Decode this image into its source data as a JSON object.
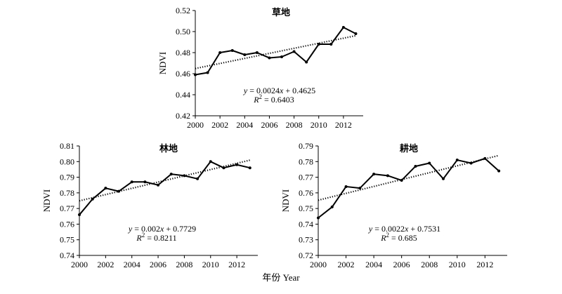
{
  "chart_data": [
    {
      "type": "line",
      "title": "草地",
      "ylabel": "NDVI",
      "x": [
        2000,
        2001,
        2002,
        2003,
        2004,
        2005,
        2006,
        2007,
        2008,
        2009,
        2010,
        2011,
        2012,
        2013
      ],
      "series": [
        {
          "values": [
            0.459,
            0.461,
            0.48,
            0.482,
            0.478,
            0.48,
            0.475,
            0.476,
            0.481,
            0.471,
            0.488,
            0.488,
            0.504,
            0.498
          ]
        }
      ],
      "trend": {
        "intercept": 0.4625,
        "slope": 0.0024
      },
      "equation": "= 0.0024x + 0.4625",
      "r2": "= 0.6403",
      "xlim": [
        2000,
        2013.6
      ],
      "ylim": [
        0.42,
        0.52
      ],
      "xticks": [
        "2000",
        "2002",
        "2004",
        "2006",
        "2008",
        "2010",
        "2012"
      ],
      "yticks": [
        "0.42",
        "0.44",
        "0.46",
        "0.48",
        "0.50",
        "0.52"
      ],
      "grid": false
    },
    {
      "type": "line",
      "title": "林地",
      "ylabel": "NDVI",
      "x": [
        2000,
        2001,
        2002,
        2003,
        2004,
        2005,
        2006,
        2007,
        2008,
        2009,
        2010,
        2011,
        2012,
        2013
      ],
      "series": [
        {
          "values": [
            0.766,
            0.776,
            0.783,
            0.781,
            0.787,
            0.787,
            0.785,
            0.792,
            0.791,
            0.789,
            0.8,
            0.796,
            0.798,
            0.796
          ]
        }
      ],
      "trend": {
        "intercept": 0.7729,
        "slope": 0.002
      },
      "equation": "= 0.002x + 0.7729",
      "r2": "= 0.8211",
      "xlim": [
        2000,
        2013.6
      ],
      "ylim": [
        0.74,
        0.81
      ],
      "xticks": [
        "2000",
        "2002",
        "2004",
        "2006",
        "2008",
        "2010",
        "2012"
      ],
      "yticks": [
        "0.74",
        "0.75",
        "0.76",
        "0.77",
        "0.78",
        "0.79",
        "0.80",
        "0.81"
      ],
      "grid": false
    },
    {
      "type": "line",
      "title": "耕地",
      "ylabel": "NDVI",
      "x": [
        2000,
        2001,
        2002,
        2003,
        2004,
        2005,
        2006,
        2007,
        2008,
        2009,
        2010,
        2011,
        2012,
        2013
      ],
      "series": [
        {
          "values": [
            0.744,
            0.751,
            0.764,
            0.763,
            0.772,
            0.771,
            0.768,
            0.777,
            0.779,
            0.769,
            0.781,
            0.779,
            0.782,
            0.774
          ]
        }
      ],
      "trend": {
        "intercept": 0.7531,
        "slope": 0.0022
      },
      "equation": "= 0.0022x + 0.7531",
      "r2": "= 0.685",
      "xlim": [
        2000,
        2013.6
      ],
      "ylim": [
        0.72,
        0.79
      ],
      "xticks": [
        "2000",
        "2002",
        "2004",
        "2006",
        "2008",
        "2010",
        "2012"
      ],
      "yticks": [
        "0.72",
        "0.73",
        "0.74",
        "0.75",
        "0.76",
        "0.77",
        "0.78",
        "0.79"
      ],
      "grid": false
    }
  ],
  "shared": {
    "xlabel": "年份 Year",
    "eq_y": "y",
    "eq_x": "x",
    "r2_label": "R",
    "r2_sup": "2"
  }
}
